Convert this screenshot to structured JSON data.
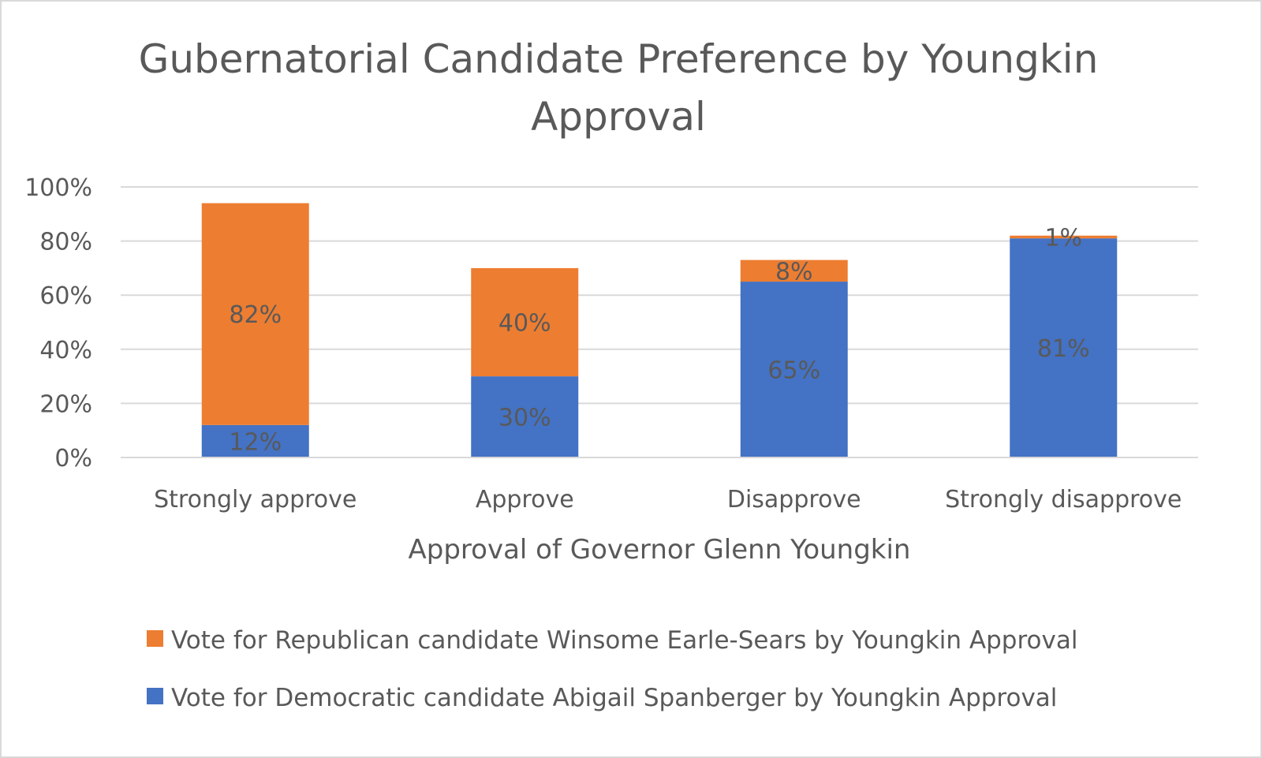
{
  "chart_data": {
    "type": "bar",
    "stacked": true,
    "title_lines": [
      "Gubernatorial Candidate Preference by Youngkin",
      "Approval"
    ],
    "xlabel": "Approval of Governor Glenn Youngkin",
    "ylabel": "",
    "ylim": [
      0,
      100
    ],
    "yticks": [
      "0%",
      "20%",
      "40%",
      "60%",
      "80%",
      "100%"
    ],
    "grid": true,
    "legend_position": "bottom",
    "categories": [
      "Strongly approve",
      "Approve",
      "Disapprove",
      "Strongly disapprove"
    ],
    "series": [
      {
        "name": "Vote for Democratic candidate Abigail Spanberger by Youngkin Approval",
        "color": "#4472C4",
        "values": [
          12,
          30,
          65,
          81
        ],
        "labels": [
          "12%",
          "30%",
          "65%",
          "81%"
        ]
      },
      {
        "name": "Vote for Republican candidate Winsome Earle-Sears by Youngkin Approval",
        "color": "#ED7D31",
        "values": [
          82,
          40,
          8,
          1
        ],
        "labels": [
          "82%",
          "40%",
          "8%",
          "1%"
        ]
      }
    ]
  }
}
